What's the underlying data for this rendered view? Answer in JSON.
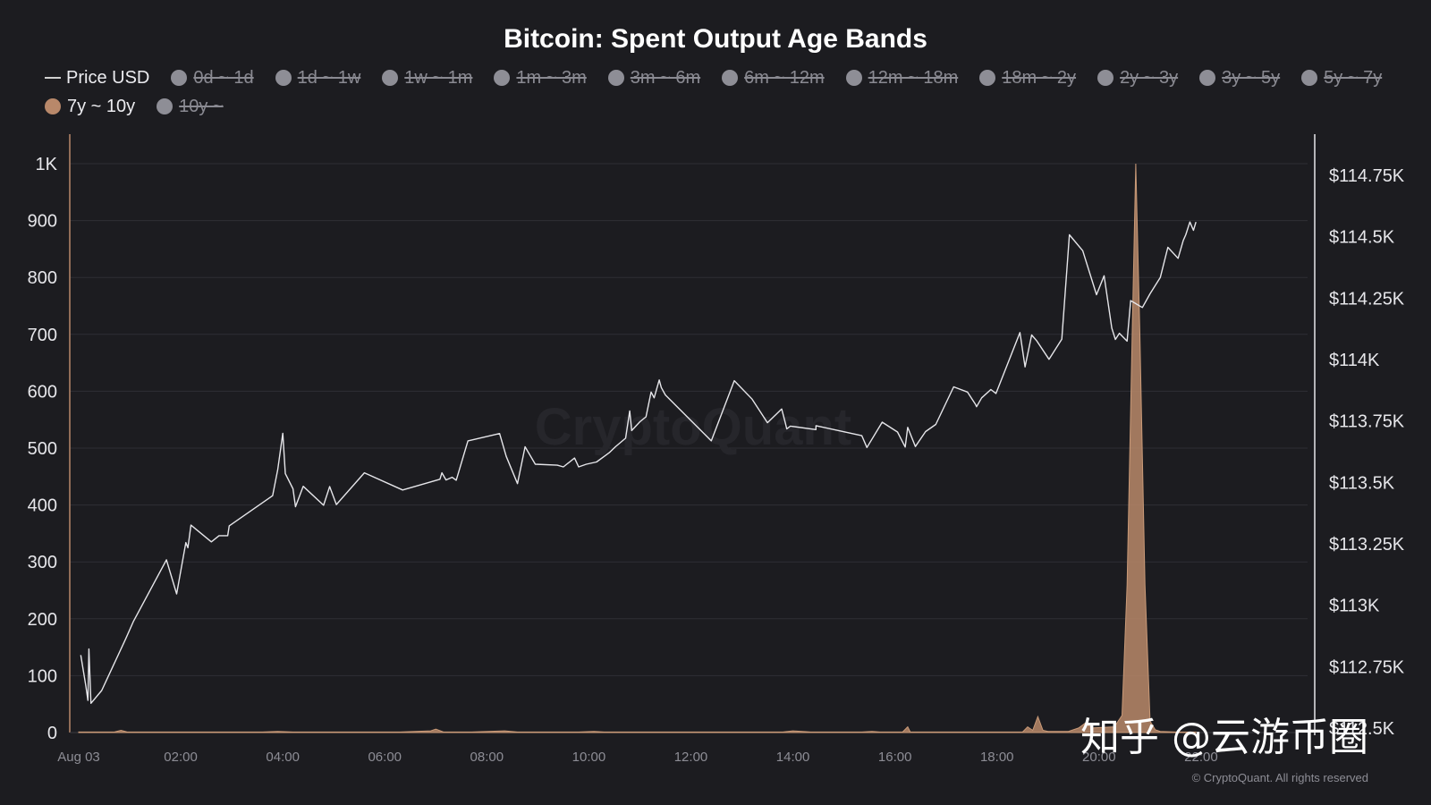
{
  "chart_data": {
    "type": "line",
    "title": "Bitcoin: Spent Output Age Bands",
    "watermark": "CryptoQuant",
    "copyright": "© CryptoQuant. All rights reserved",
    "overlay_text": "知乎 @云游币圈",
    "colors": {
      "background": "#1c1c20",
      "price_line": "#e6e6ea",
      "band_7y_10y": "#b8886a",
      "hidden_series": "#8e8e96",
      "grid": "#2e2e34"
    },
    "legend_placement": "top-left",
    "legend": [
      {
        "name": "Price USD",
        "visible": true,
        "marker": "line",
        "color": "#d0d0d0"
      },
      {
        "name": "0d ~ 1d",
        "visible": false,
        "marker": "dot",
        "color": "#8e8e96"
      },
      {
        "name": "1d ~ 1w",
        "visible": false,
        "marker": "dot",
        "color": "#8e8e96"
      },
      {
        "name": "1w ~ 1m",
        "visible": false,
        "marker": "dot",
        "color": "#8e8e96"
      },
      {
        "name": "1m ~ 3m",
        "visible": false,
        "marker": "dot",
        "color": "#8e8e96"
      },
      {
        "name": "3m ~ 6m",
        "visible": false,
        "marker": "dot",
        "color": "#8e8e96"
      },
      {
        "name": "6m ~ 12m",
        "visible": false,
        "marker": "dot",
        "color": "#8e8e96"
      },
      {
        "name": "12m ~ 18m",
        "visible": false,
        "marker": "dot",
        "color": "#8e8e96"
      },
      {
        "name": "18m ~ 2y",
        "visible": false,
        "marker": "dot",
        "color": "#8e8e96"
      },
      {
        "name": "2y ~ 3y",
        "visible": false,
        "marker": "dot",
        "color": "#8e8e96"
      },
      {
        "name": "3y ~ 5y",
        "visible": false,
        "marker": "dot",
        "color": "#8e8e96"
      },
      {
        "name": "5y ~ 7y",
        "visible": false,
        "marker": "dot",
        "color": "#8e8e96"
      },
      {
        "name": "7y ~ 10y",
        "visible": true,
        "marker": "dot",
        "color": "#b8886a"
      },
      {
        "name": "10y ~",
        "visible": false,
        "marker": "dot",
        "color": "#8e8e96"
      }
    ],
    "x_ticks": [
      "Aug 03",
      "02:00",
      "04:00",
      "06:00",
      "08:00",
      "10:00",
      "12:00",
      "14:00",
      "16:00",
      "18:00",
      "20:00",
      "22:00"
    ],
    "x_range_hours": [
      0,
      24
    ],
    "y_left": {
      "range": [
        0,
        1000
      ],
      "ticks": [
        0,
        100,
        200,
        300,
        400,
        500,
        600,
        700,
        800,
        900,
        1000
      ],
      "tick_labels": [
        "0",
        "100",
        "200",
        "300",
        "400",
        "500",
        "600",
        "700",
        "800",
        "900",
        "1K"
      ]
    },
    "y_right": {
      "range": [
        112500,
        114750
      ],
      "ticks": [
        112500,
        112750,
        113000,
        113250,
        113500,
        113750,
        114000,
        114250,
        114500,
        114750
      ],
      "tick_labels": [
        "$112.5K",
        "$112.75K",
        "$113K",
        "$113.25K",
        "$113.5K",
        "$113.75K",
        "$114K",
        "$114.25K",
        "$114.5K",
        "$114.75K"
      ]
    },
    "grid": true,
    "series": [
      {
        "name": "Price USD",
        "axis": "right",
        "points": [
          [
            0.04,
            112797
          ],
          [
            0.14,
            112671
          ],
          [
            0.18,
            112613
          ],
          [
            0.2,
            112822
          ],
          [
            0.24,
            112601
          ],
          [
            0.45,
            112653
          ],
          [
            0.92,
            112863
          ],
          [
            1.07,
            112933
          ],
          [
            1.72,
            113185
          ],
          [
            1.92,
            113046
          ],
          [
            2.1,
            113255
          ],
          [
            2.14,
            113234
          ],
          [
            2.2,
            113326
          ],
          [
            2.6,
            113258
          ],
          [
            2.75,
            113283
          ],
          [
            2.92,
            113283
          ],
          [
            2.95,
            113323
          ],
          [
            3.8,
            113446
          ],
          [
            3.9,
            113551
          ],
          [
            4.0,
            113700
          ],
          [
            4.05,
            113536
          ],
          [
            4.2,
            113474
          ],
          [
            4.25,
            113401
          ],
          [
            4.4,
            113484
          ],
          [
            4.8,
            113407
          ],
          [
            4.92,
            113483
          ],
          [
            5.05,
            113410
          ],
          [
            5.6,
            113539
          ],
          [
            6.35,
            113469
          ],
          [
            7.08,
            113513
          ],
          [
            7.12,
            113539
          ],
          [
            7.2,
            113510
          ],
          [
            7.32,
            113521
          ],
          [
            7.4,
            113509
          ],
          [
            7.63,
            113669
          ],
          [
            8.25,
            113699
          ],
          [
            8.38,
            113606
          ],
          [
            8.6,
            113495
          ],
          [
            8.75,
            113645
          ],
          [
            8.95,
            113574
          ],
          [
            9.38,
            113570
          ],
          [
            9.5,
            113563
          ],
          [
            9.72,
            113599
          ],
          [
            9.8,
            113563
          ],
          [
            9.95,
            113574
          ],
          [
            10.15,
            113583
          ],
          [
            10.4,
            113621
          ],
          [
            10.52,
            113645
          ],
          [
            10.72,
            113680
          ],
          [
            10.8,
            113791
          ],
          [
            10.84,
            113711
          ],
          [
            11.0,
            113747
          ],
          [
            11.12,
            113767
          ],
          [
            11.22,
            113868
          ],
          [
            11.28,
            113844
          ],
          [
            11.38,
            113917
          ],
          [
            11.42,
            113886
          ],
          [
            11.5,
            113856
          ],
          [
            12.4,
            113669
          ],
          [
            12.85,
            113914
          ],
          [
            13.2,
            113839
          ],
          [
            13.5,
            113743
          ],
          [
            13.78,
            113799
          ],
          [
            13.85,
            113743
          ],
          [
            13.88,
            113718
          ],
          [
            13.95,
            113729
          ],
          [
            14.45,
            113715
          ],
          [
            14.45,
            113731
          ],
          [
            15.35,
            113690
          ],
          [
            15.45,
            113642
          ],
          [
            15.75,
            113745
          ],
          [
            16.05,
            113705
          ],
          [
            16.2,
            113644
          ],
          [
            16.25,
            113724
          ],
          [
            16.4,
            113646
          ],
          [
            16.6,
            113707
          ],
          [
            16.8,
            113736
          ],
          [
            17.15,
            113889
          ],
          [
            17.42,
            113868
          ],
          [
            17.58,
            113817
          ],
          [
            17.6,
            113808
          ],
          [
            17.7,
            113844
          ],
          [
            17.88,
            113878
          ],
          [
            17.98,
            113862
          ],
          [
            18.45,
            114110
          ],
          [
            18.55,
            113970
          ],
          [
            18.68,
            114100
          ],
          [
            18.78,
            114076
          ],
          [
            19.02,
            114001
          ],
          [
            19.27,
            114083
          ],
          [
            19.42,
            114508
          ],
          [
            19.68,
            114443
          ],
          [
            19.95,
            114264
          ],
          [
            20.1,
            114341
          ],
          [
            20.25,
            114128
          ],
          [
            20.32,
            114082
          ],
          [
            20.4,
            114107
          ],
          [
            20.55,
            114075
          ],
          [
            20.62,
            114240
          ],
          [
            20.85,
            114212
          ],
          [
            21.0,
            114268
          ],
          [
            21.2,
            114334
          ],
          [
            21.35,
            114457
          ],
          [
            21.55,
            114412
          ],
          [
            21.65,
            114485
          ],
          [
            21.7,
            114508
          ],
          [
            21.78,
            114560
          ],
          [
            21.85,
            114526
          ],
          [
            21.9,
            114560
          ]
        ]
      },
      {
        "name": "7y ~ 10y",
        "axis": "left",
        "points": [
          [
            0.0,
            1
          ],
          [
            0.7,
            1
          ],
          [
            0.83,
            4
          ],
          [
            0.95,
            1
          ],
          [
            2.0,
            1
          ],
          [
            3.6,
            1
          ],
          [
            3.9,
            2
          ],
          [
            4.2,
            1
          ],
          [
            6.3,
            1
          ],
          [
            6.9,
            3
          ],
          [
            7.0,
            6
          ],
          [
            7.15,
            1
          ],
          [
            7.7,
            1
          ],
          [
            8.35,
            3
          ],
          [
            8.6,
            1
          ],
          [
            9.8,
            1
          ],
          [
            10.1,
            2
          ],
          [
            10.3,
            1
          ],
          [
            13.8,
            1
          ],
          [
            14.0,
            3
          ],
          [
            14.35,
            1
          ],
          [
            15.35,
            1
          ],
          [
            15.55,
            2
          ],
          [
            15.7,
            1
          ],
          [
            16.15,
            1
          ],
          [
            16.25,
            10
          ],
          [
            16.3,
            1
          ],
          [
            18.5,
            1
          ],
          [
            18.6,
            10
          ],
          [
            18.7,
            4
          ],
          [
            18.8,
            28
          ],
          [
            18.9,
            4
          ],
          [
            19.0,
            2
          ],
          [
            19.4,
            2
          ],
          [
            19.6,
            8
          ],
          [
            19.75,
            18
          ],
          [
            19.85,
            8
          ],
          [
            20.3,
            10
          ],
          [
            20.45,
            30
          ],
          [
            20.55,
            260
          ],
          [
            20.65,
            700
          ],
          [
            20.72,
            1000
          ],
          [
            20.8,
            700
          ],
          [
            20.9,
            260
          ],
          [
            21.0,
            20
          ],
          [
            21.1,
            5
          ],
          [
            21.2,
            2
          ],
          [
            21.5,
            1
          ],
          [
            21.9,
            1
          ]
        ]
      }
    ]
  }
}
